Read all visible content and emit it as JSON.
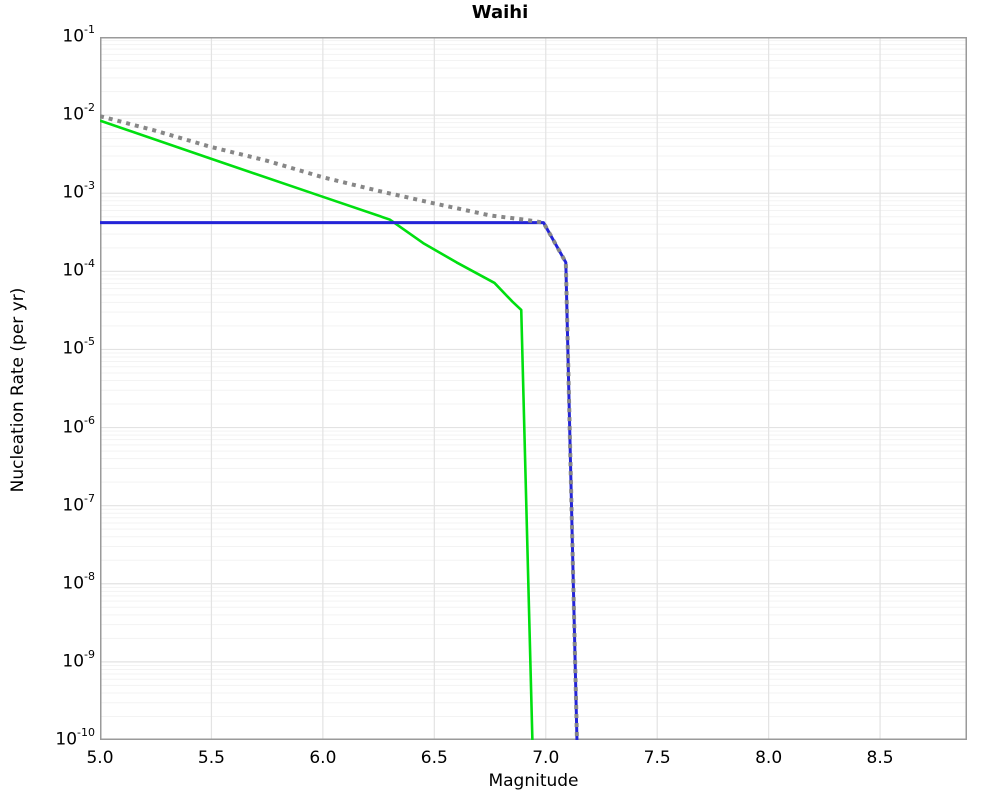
{
  "page": {
    "background": "#ffffff"
  },
  "chart_data": {
    "type": "line",
    "title": "Waihi",
    "xlabel": "Magnitude",
    "ylabel": "Nucleation Rate (per yr)",
    "x_range": [
      5.0,
      8.89
    ],
    "x_ticks": [
      "5.0",
      "5.5",
      "6.0",
      "6.5",
      "7.0",
      "7.5",
      "8.0",
      "8.5"
    ],
    "y_scale": "log",
    "y_range": [
      1e-10,
      0.1
    ],
    "y_tick_exponents": [
      -1,
      -2,
      -3,
      -4,
      -5,
      -6,
      -7,
      -8,
      -9,
      -10
    ],
    "grid": true,
    "legend": "none",
    "frame_color": "#9a9a9a",
    "major_grid_color": "#e3e3e3",
    "minor_grid_color": "#f3f3f3",
    "series": [
      {
        "name": "green-solid-curve",
        "color": "#00df10",
        "style": "solid",
        "points": [
          [
            5.0,
            0.0085
          ],
          [
            5.5,
            0.00275
          ],
          [
            6.0,
            0.0009
          ],
          [
            6.3,
            0.00046
          ],
          [
            6.45,
            0.00023
          ],
          [
            6.6,
            0.00013
          ],
          [
            6.77,
            7.1e-05
          ],
          [
            6.85,
            4.1e-05
          ],
          [
            6.89,
            3.2e-05
          ],
          [
            6.94,
            1e-10
          ]
        ]
      },
      {
        "name": "blue-solid-curve",
        "color": "#2424d8",
        "style": "solid",
        "points": [
          [
            5.0,
            0.00042
          ],
          [
            6.99,
            0.00042
          ],
          [
            7.09,
            0.00013
          ],
          [
            7.14,
            1e-10
          ]
        ]
      },
      {
        "name": "gray-dotted-total-curve",
        "color": "#878787",
        "style": "dotted",
        "points": [
          [
            5.0,
            0.0097
          ],
          [
            5.25,
            0.0063
          ],
          [
            5.5,
            0.0039
          ],
          [
            5.75,
            0.0026
          ],
          [
            6.0,
            0.0016
          ],
          [
            6.25,
            0.00107
          ],
          [
            6.5,
            0.00074
          ],
          [
            6.75,
            0.00052
          ],
          [
            6.9,
            0.00046
          ],
          [
            6.99,
            0.00042
          ],
          [
            7.09,
            0.00013
          ],
          [
            7.14,
            1e-10
          ]
        ]
      }
    ]
  }
}
